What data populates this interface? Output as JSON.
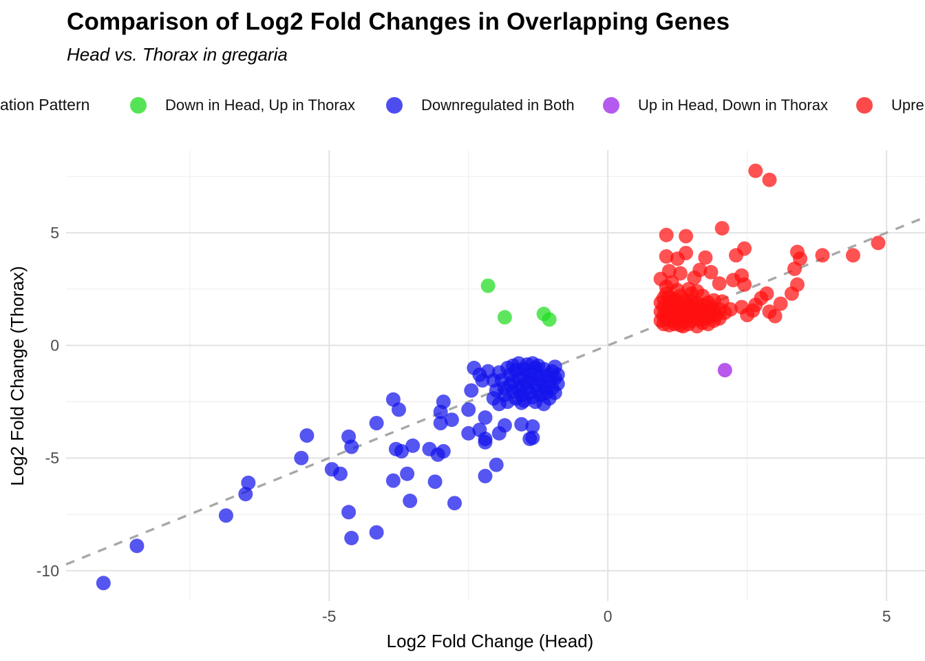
{
  "header": {
    "title": "Comparison of Log2 Fold Changes in Overlapping Genes",
    "subtitle": "Head vs. Thorax in gregaria"
  },
  "legend": {
    "title_visible": "ation Pattern",
    "items": [
      {
        "label": "Down in Head, Up in Thorax",
        "color": "#55E455"
      },
      {
        "label": "Downregulated in Both",
        "color": "#4D4DEF"
      },
      {
        "label": "Up in Head, Down in Thorax",
        "color": "#B55AEF"
      },
      {
        "label": "Upre",
        "color": "#FC4A4A"
      }
    ]
  },
  "chart_data": {
    "type": "scatter",
    "title": "Comparison of Log2 Fold Changes in Overlapping Genes",
    "subtitle": "Head vs. Thorax in gregaria",
    "xlabel": "Log2 Fold Change (Head)",
    "ylabel": "Log2 Fold Change (Thorax)",
    "xlim": [
      -9.72,
      5.69
    ],
    "ylim": [
      -11.35,
      8.67
    ],
    "x_major_ticks": [
      -5,
      0,
      5
    ],
    "y_major_ticks": [
      5,
      0,
      -5,
      -10
    ],
    "x_minor_ticks": [
      -7.5,
      -2.5,
      2.5
    ],
    "y_minor_ticks": [
      7.5,
      2.5,
      -2.5,
      -7.5
    ],
    "grid": true,
    "legend_position": "top",
    "identity_line": {
      "equation": "y = x",
      "style": "dashed",
      "color": "#A8A8A8",
      "from": [
        -9.72,
        -9.72
      ],
      "to": [
        5.69,
        5.69
      ]
    },
    "series": [
      {
        "name": "Down in Head, Up in Thorax",
        "color": "#1EDC1E",
        "alpha": 0.72,
        "points": [
          [
            -2.15,
            2.65
          ],
          [
            -1.85,
            1.25
          ],
          [
            -1.15,
            1.4
          ],
          [
            -1.05,
            1.15
          ]
        ]
      },
      {
        "name": "Downregulated in Both",
        "color": "#1414EB",
        "alpha": 0.72,
        "points": [
          [
            -9.05,
            -10.55
          ],
          [
            -8.45,
            -8.9
          ],
          [
            -6.85,
            -7.55
          ],
          [
            -6.5,
            -6.6
          ],
          [
            -6.45,
            -6.1
          ],
          [
            -5.5,
            -5.0
          ],
          [
            -5.4,
            -4.0
          ],
          [
            -4.95,
            -5.5
          ],
          [
            -4.8,
            -5.7
          ],
          [
            -4.65,
            -4.05
          ],
          [
            -4.6,
            -4.5
          ],
          [
            -4.65,
            -7.4
          ],
          [
            -4.6,
            -8.55
          ],
          [
            -4.15,
            -8.3
          ],
          [
            -4.15,
            -3.45
          ],
          [
            -3.85,
            -2.4
          ],
          [
            -3.75,
            -2.85
          ],
          [
            -3.85,
            -6.0
          ],
          [
            -3.6,
            -5.7
          ],
          [
            -3.55,
            -6.9
          ],
          [
            -3.8,
            -4.6
          ],
          [
            -3.5,
            -4.45
          ],
          [
            -3.7,
            -4.7
          ],
          [
            -3.2,
            -4.6
          ],
          [
            -3.05,
            -4.85
          ],
          [
            -2.95,
            -4.7
          ],
          [
            -3.1,
            -6.05
          ],
          [
            -2.75,
            -7.0
          ],
          [
            -2.95,
            -2.5
          ],
          [
            -3.0,
            -2.95
          ],
          [
            -3.0,
            -3.45
          ],
          [
            -2.8,
            -3.3
          ],
          [
            -2.5,
            -2.85
          ],
          [
            -2.2,
            -3.2
          ],
          [
            -2.3,
            -3.75
          ],
          [
            -2.5,
            -3.9
          ],
          [
            -2.2,
            -4.15
          ],
          [
            -1.95,
            -3.9
          ],
          [
            -1.85,
            -3.55
          ],
          [
            -1.55,
            -3.5
          ],
          [
            -1.35,
            -3.6
          ],
          [
            -1.4,
            -4.15
          ],
          [
            -1.35,
            -4.1
          ],
          [
            -2.0,
            -5.3
          ],
          [
            -2.2,
            -5.8
          ],
          [
            -2.2,
            -4.3
          ],
          [
            -2.4,
            -1.0
          ],
          [
            -2.15,
            -1.15
          ],
          [
            -2.3,
            -1.3
          ],
          [
            -2.45,
            -2.0
          ],
          [
            -2.25,
            -1.55
          ],
          [
            -2.05,
            -1.55
          ],
          [
            -1.7,
            -0.9
          ],
          [
            -1.35,
            -0.8
          ],
          [
            -1.8,
            -1.0
          ],
          [
            -1.75,
            -1.3
          ],
          [
            -1.7,
            -1.6
          ],
          [
            -1.65,
            -1.1
          ],
          [
            -1.6,
            -1.45
          ],
          [
            -1.55,
            -1.8
          ],
          [
            -1.5,
            -1.05
          ],
          [
            -1.5,
            -1.35
          ],
          [
            -1.45,
            -1.65
          ],
          [
            -1.4,
            -1.2
          ],
          [
            -1.35,
            -1.5
          ],
          [
            -1.3,
            -1.0
          ],
          [
            -1.3,
            -1.75
          ],
          [
            -1.25,
            -1.3
          ],
          [
            -1.2,
            -1.55
          ],
          [
            -1.15,
            -1.05
          ],
          [
            -1.15,
            -1.85
          ],
          [
            -1.1,
            -1.35
          ],
          [
            -1.05,
            -1.6
          ],
          [
            -1.0,
            -1.15
          ],
          [
            -0.95,
            -1.45
          ],
          [
            -0.9,
            -1.7
          ],
          [
            -1.0,
            -1.9
          ],
          [
            -1.1,
            -2.1
          ],
          [
            -1.25,
            -2.0
          ],
          [
            -1.4,
            -2.1
          ],
          [
            -1.55,
            -2.2
          ],
          [
            -1.7,
            -2.05
          ],
          [
            -1.85,
            -1.9
          ],
          [
            -1.6,
            -1.95
          ],
          [
            -1.45,
            -1.9
          ],
          [
            -1.2,
            -2.2
          ],
          [
            -1.35,
            -2.3
          ],
          [
            -1.5,
            -2.45
          ],
          [
            -1.65,
            -2.35
          ],
          [
            -1.8,
            -2.5
          ],
          [
            -1.05,
            -2.35
          ],
          [
            -0.95,
            -2.1
          ],
          [
            -1.55,
            -2.55
          ],
          [
            -1.3,
            -2.5
          ],
          [
            -1.75,
            -1.75
          ],
          [
            -1.9,
            -1.55
          ],
          [
            -1.95,
            -1.2
          ],
          [
            -1.85,
            -2.2
          ],
          [
            -2.0,
            -2.0
          ],
          [
            -2.05,
            -2.35
          ],
          [
            -1.95,
            -2.6
          ],
          [
            -1.15,
            -2.6
          ],
          [
            -0.9,
            -1.3
          ],
          [
            -0.95,
            -0.95
          ],
          [
            -1.45,
            -0.85
          ],
          [
            -1.6,
            -0.8
          ],
          [
            -1.25,
            -0.9
          ]
        ]
      },
      {
        "name": "Up in Head, Down in Thorax",
        "color": "#A020E6",
        "alpha": 0.75,
        "points": [
          [
            2.1,
            -1.1
          ]
        ]
      },
      {
        "name": "Upre",
        "color": "#FF0F0F",
        "alpha": 0.72,
        "points": [
          [
            2.65,
            7.75
          ],
          [
            2.9,
            7.35
          ],
          [
            2.05,
            5.2
          ],
          [
            1.05,
            4.9
          ],
          [
            1.4,
            4.85
          ],
          [
            4.85,
            4.55
          ],
          [
            2.45,
            4.3
          ],
          [
            2.3,
            4.0
          ],
          [
            4.4,
            4.0
          ],
          [
            3.4,
            4.15
          ],
          [
            3.85,
            4.0
          ],
          [
            3.45,
            3.85
          ],
          [
            1.05,
            3.95
          ],
          [
            1.25,
            3.85
          ],
          [
            1.4,
            4.1
          ],
          [
            1.75,
            3.9
          ],
          [
            3.35,
            3.4
          ],
          [
            1.1,
            3.3
          ],
          [
            1.3,
            3.2
          ],
          [
            1.65,
            3.35
          ],
          [
            1.85,
            3.25
          ],
          [
            2.4,
            3.1
          ],
          [
            0.95,
            2.95
          ],
          [
            1.15,
            2.8
          ],
          [
            1.55,
            3.0
          ],
          [
            2.0,
            2.75
          ],
          [
            2.25,
            2.9
          ],
          [
            2.45,
            2.7
          ],
          [
            2.75,
            2.1
          ],
          [
            2.85,
            2.3
          ],
          [
            3.1,
            1.85
          ],
          [
            3.3,
            2.3
          ],
          [
            3.4,
            2.7
          ],
          [
            2.4,
            1.7
          ],
          [
            2.65,
            1.8
          ],
          [
            2.05,
            1.95
          ],
          [
            2.2,
            1.6
          ],
          [
            2.5,
            1.35
          ],
          [
            2.6,
            1.55
          ],
          [
            2.9,
            1.5
          ],
          [
            3.0,
            1.3
          ],
          [
            0.95,
            1.1
          ],
          [
            0.95,
            1.5
          ],
          [
            0.95,
            1.9
          ],
          [
            1.0,
            0.95
          ],
          [
            1.0,
            1.3
          ],
          [
            1.0,
            1.7
          ],
          [
            1.0,
            2.1
          ],
          [
            1.05,
            1.15
          ],
          [
            1.05,
            1.5
          ],
          [
            1.05,
            2.3
          ],
          [
            1.1,
            0.9
          ],
          [
            1.1,
            1.35
          ],
          [
            1.1,
            1.75
          ],
          [
            1.1,
            2.15
          ],
          [
            1.15,
            1.1
          ],
          [
            1.15,
            1.55
          ],
          [
            1.15,
            1.95
          ],
          [
            1.2,
            0.95
          ],
          [
            1.2,
            1.3
          ],
          [
            1.2,
            1.7
          ],
          [
            1.2,
            2.05
          ],
          [
            1.25,
            1.15
          ],
          [
            1.25,
            1.5
          ],
          [
            1.25,
            1.85
          ],
          [
            1.3,
            0.9
          ],
          [
            1.3,
            1.35
          ],
          [
            1.3,
            1.65
          ],
          [
            1.3,
            2.2
          ],
          [
            1.35,
            1.05
          ],
          [
            1.35,
            1.5
          ],
          [
            1.35,
            1.9
          ],
          [
            1.4,
            1.2
          ],
          [
            1.4,
            1.6
          ],
          [
            1.4,
            2.0
          ],
          [
            1.45,
            0.95
          ],
          [
            1.45,
            1.4
          ],
          [
            1.45,
            1.75
          ],
          [
            1.5,
            1.1
          ],
          [
            1.5,
            1.55
          ],
          [
            1.5,
            1.95
          ],
          [
            1.55,
            1.25
          ],
          [
            1.55,
            1.7
          ],
          [
            1.6,
            0.85
          ],
          [
            1.6,
            1.45
          ],
          [
            1.6,
            1.85
          ],
          [
            1.65,
            1.15
          ],
          [
            1.65,
            1.6
          ],
          [
            1.7,
            1.0
          ],
          [
            1.7,
            1.35
          ],
          [
            1.7,
            1.8
          ],
          [
            1.75,
            1.2
          ],
          [
            1.75,
            1.55
          ],
          [
            1.8,
            0.95
          ],
          [
            1.8,
            1.45
          ],
          [
            1.8,
            1.9
          ],
          [
            1.85,
            1.3
          ],
          [
            1.85,
            1.7
          ],
          [
            1.9,
            1.1
          ],
          [
            1.9,
            1.5
          ],
          [
            1.95,
            1.35
          ],
          [
            2.0,
            1.2
          ],
          [
            2.0,
            1.6
          ],
          [
            1.5,
            2.3
          ],
          [
            1.7,
            2.2
          ],
          [
            1.9,
            2.0
          ],
          [
            2.1,
            1.45
          ],
          [
            1.25,
            2.45
          ],
          [
            1.45,
            2.5
          ],
          [
            1.05,
            2.6
          ],
          [
            1.6,
            2.4
          ],
          [
            1.35,
            0.85
          ]
        ]
      }
    ]
  }
}
